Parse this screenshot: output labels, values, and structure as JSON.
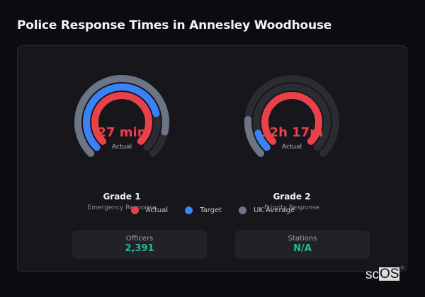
{
  "header": {
    "title": "Police Response Times in Annesley Woodhouse"
  },
  "gauges": [
    {
      "value": "27 min",
      "value_label": "Actual",
      "title": "Grade 1",
      "subtitle": "Emergency Response",
      "rings": {
        "actual_pct": 100,
        "target_pct": 78,
        "uk_average_pct": 88
      }
    },
    {
      "value": "12h 17m",
      "value_label": "Actual",
      "title": "Grade 2",
      "subtitle": "Priority Response",
      "rings": {
        "actual_pct": 100,
        "target_pct": 10,
        "uk_average_pct": 18
      }
    }
  ],
  "legend": [
    {
      "label": "Actual",
      "color": "#e8414a"
    },
    {
      "label": "Target",
      "color": "#3b82f6"
    },
    {
      "label": "UK Average",
      "color": "#6b7585"
    }
  ],
  "stats": [
    {
      "label": "Officers",
      "value": "2,391"
    },
    {
      "label": "Stations",
      "value": "N/A"
    }
  ],
  "colors": {
    "track": "#2b2b31",
    "actual": "#e8414a",
    "target": "#3b82f6",
    "uk_average": "#6b7585",
    "stat_value": "#1fbf97"
  },
  "brand": {
    "prefix": "sc",
    "highlight": "OS",
    "mark": "®"
  }
}
